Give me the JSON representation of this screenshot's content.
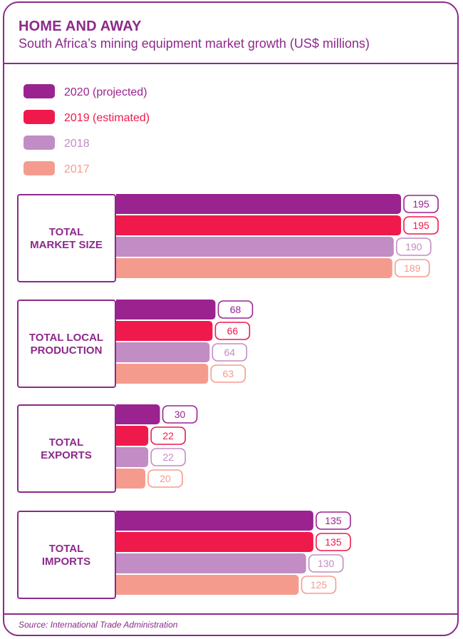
{
  "header": {
    "title": "HOME AND AWAY",
    "subtitle": "South Africa’s mining equipment market growth (US$ millions)"
  },
  "footer": {
    "source": "Source: International Trade Administration"
  },
  "colors": {
    "2020 (projected)": "#9a2390",
    "2019 (estimated)": "#ef1a4b",
    "2018": "#c28cc4",
    "2017": "#f59b8e",
    "frame": "#8c2a8a"
  },
  "chart_data": {
    "type": "bar",
    "orientation": "horizontal",
    "title": "HOME AND AWAY",
    "subtitle": "South Africa’s mining equipment market growth (US$ millions)",
    "categories": [
      [
        "TOTAL",
        "MARKET SIZE"
      ],
      [
        "TOTAL LOCAL",
        "PRODUCTION"
      ],
      [
        "TOTAL",
        "EXPORTS"
      ],
      [
        "TOTAL",
        "IMPORTS"
      ]
    ],
    "series": [
      {
        "name": "2020 (projected)",
        "values": [
          195,
          68,
          30,
          135
        ]
      },
      {
        "name": "2019 (estimated)",
        "values": [
          195,
          66,
          22,
          135
        ]
      },
      {
        "name": "2018",
        "values": [
          190,
          64,
          22,
          130
        ]
      },
      {
        "name": "2017",
        "values": [
          189,
          63,
          20,
          125
        ]
      }
    ],
    "legend_position": "top-left",
    "grid": false,
    "data_labels": true
  }
}
